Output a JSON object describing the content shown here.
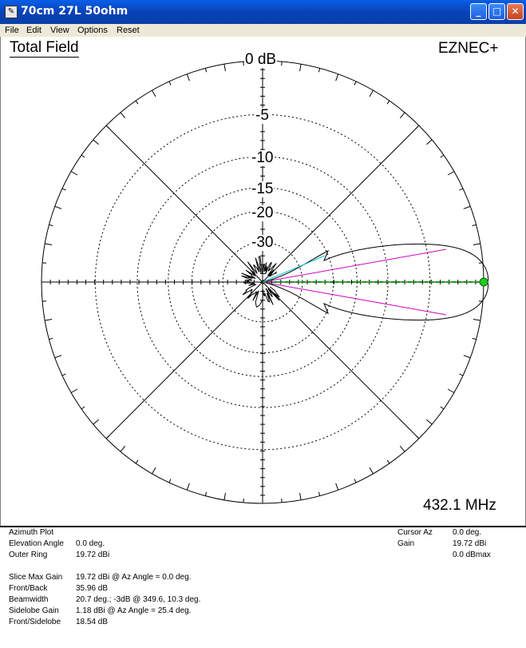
{
  "window": {
    "title": "70cm 27L 50ohm",
    "min_glyph": "_",
    "max_glyph": "□",
    "close_glyph": "✕"
  },
  "menu": [
    "File",
    "Edit",
    "View",
    "Options",
    "Reset"
  ],
  "plot": {
    "title": "Total Field",
    "brand": "EZNEC+",
    "frequency": "432.1 MHz",
    "ring_labels": [
      "0 dB",
      "-5",
      "-10",
      "-15",
      "-20",
      "-30"
    ]
  },
  "info_left": [
    {
      "label": "Azimuth Plot",
      "value": ""
    },
    {
      "label": "Elevation Angle",
      "value": "0.0 deg."
    },
    {
      "label": "Outer Ring",
      "value": "19.72 dBi"
    },
    {
      "label": "",
      "value": ""
    },
    {
      "label": "Slice Max Gain",
      "value": "19.72 dBi @ Az Angle = 0.0 deg."
    },
    {
      "label": "Front/Back",
      "value": "35.96 dB"
    },
    {
      "label": "Beamwidth",
      "value": "20.7 deg.; -3dB @ 349.6, 10.3 deg."
    },
    {
      "label": "Sidelobe Gain",
      "value": "1.18 dBi @ Az Angle = 25.4 deg."
    },
    {
      "label": "Front/Sidelobe",
      "value": "18.54 dB"
    }
  ],
  "info_right": [
    {
      "label": "Cursor Az",
      "value": "0.0 deg."
    },
    {
      "label": "Gain",
      "value": "19.72 dBi"
    },
    {
      "label": "",
      "value": "0.0 dBmax"
    }
  ],
  "colors": {
    "pattern": "#000000",
    "cursor_line": "#00a000",
    "beamwidth_lines": "#d000c0",
    "sidelobe_line": "#00c8e0",
    "cursor_dot": "#22cc22"
  }
}
